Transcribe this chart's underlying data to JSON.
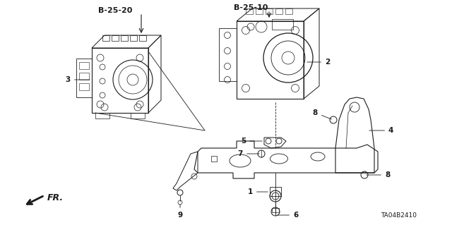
{
  "background_color": "#ffffff",
  "diagram_code": "TA04B2410",
  "figsize": [
    6.4,
    3.19
  ],
  "dpi": 100,
  "lc": "#1a1a1a",
  "B2520_label": "B-25-20",
  "B2510_label": "B-25-10",
  "fr_label": "FR.",
  "part_numbers": [
    "1",
    "2",
    "3",
    "4",
    "5",
    "6",
    "7",
    "8",
    "8",
    "9"
  ]
}
